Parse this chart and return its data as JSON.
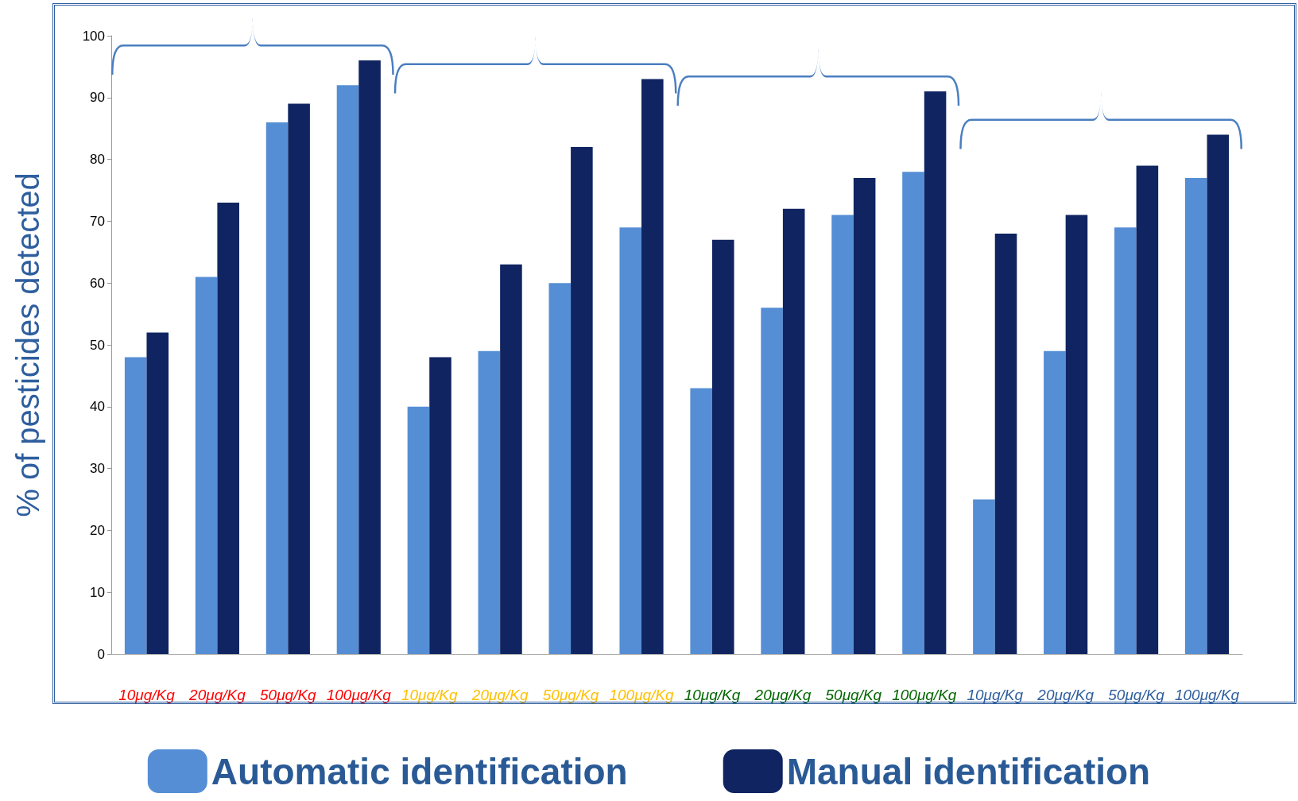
{
  "chart_data": {
    "type": "bar",
    "ylabel": "% of pesticides detected",
    "categories": [
      "10μg/Kg",
      "20μg/Kg",
      "50μg/Kg",
      "100μg/Kg",
      "10μg/Kg",
      "20μg/Kg",
      "50μg/Kg",
      "100μg/Kg",
      "10μg/Kg",
      "20μg/Kg",
      "50μg/Kg",
      "100μg/Kg",
      "10μg/Kg",
      "20μg/Kg",
      "50μg/Kg",
      "100μg/Kg"
    ],
    "series": [
      {
        "name": "Automatic identification",
        "color": "#558ed5",
        "values": [
          48,
          61,
          86,
          92,
          40,
          49,
          60,
          69,
          43,
          56,
          71,
          78,
          25,
          49,
          69,
          77
        ]
      },
      {
        "name": "Manual identification",
        "color": "#0f2460",
        "values": [
          52,
          73,
          89,
          96,
          48,
          63,
          82,
          93,
          67,
          72,
          77,
          91,
          68,
          71,
          79,
          84
        ]
      }
    ],
    "ylim": [
      0,
      100
    ],
    "yticks": [
      0,
      10,
      20,
      30,
      40,
      50,
      60,
      70,
      80,
      90,
      100
    ],
    "grid": false,
    "legend": "bottom"
  }
}
